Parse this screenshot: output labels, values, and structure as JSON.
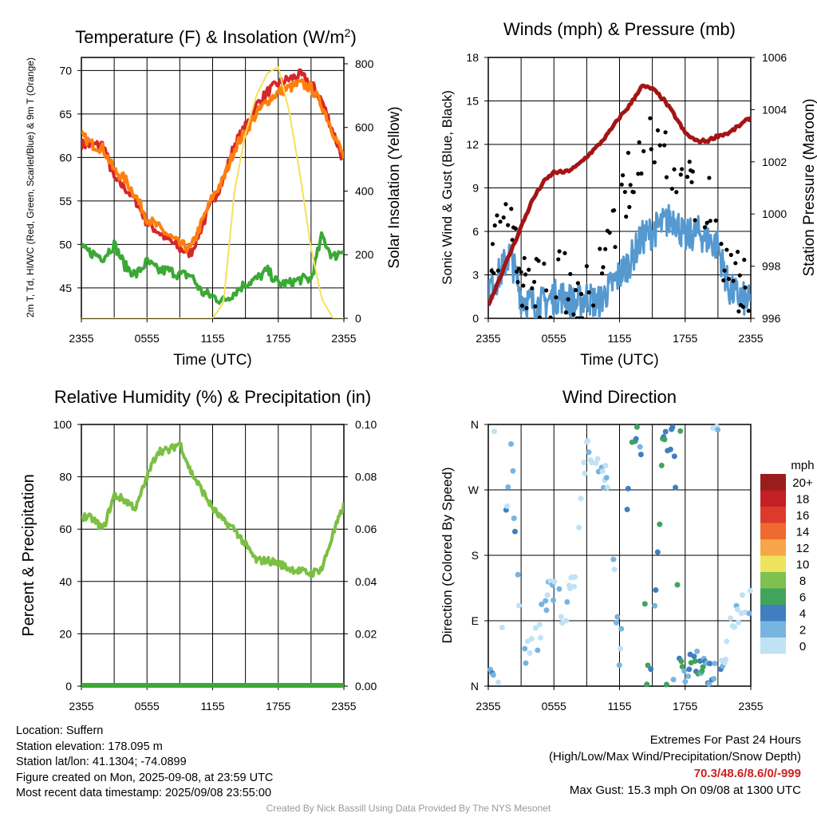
{
  "footer": {
    "location": "Location: Suffern",
    "elevation": "Station elevation: 178.095 m",
    "latlon": "Station lat/lon: 41.1304; -74.0899",
    "created": "Figure created on Mon, 2025-09-08, at 23:59 UTC",
    "latest": "Most recent data timestamp: 2025/09/08 23:55:00",
    "extremes_title": "Extremes For Past 24 Hours",
    "extremes_desc": "(High/Low/Max Wind/Precipitation/Snow Depth)",
    "extremes_values": "70.3/48.6/8.6/0/-999",
    "max_gust": "Max Gust: 15.3 mph On 09/08 at 1300 UTC",
    "credit": "Created By Nick Bassill Using Data Provided By The NYS Mesonet"
  },
  "chart_data": [
    {
      "type": "line",
      "title": "Temperature (F) & Insolation (W/m²)",
      "xlabel": "Time (UTC)",
      "ylabel": "2m T, Td, HI/WC (Red, Green, Scarlet/Blue) & 9m T (Orange)",
      "y2label": "Solar Insolation (Yellow)",
      "xticks": [
        "2355",
        "0555",
        "1155",
        "1755",
        "2355"
      ],
      "ylim": [
        41.5,
        71.5
      ],
      "yticks": [
        45,
        50,
        55,
        60,
        65,
        70
      ],
      "y2lim": [
        0,
        820
      ],
      "y2ticks": [
        0,
        200,
        400,
        600,
        800
      ],
      "x_hours_after_2355": [
        0,
        1,
        2,
        3,
        4,
        5,
        6,
        7,
        8,
        9,
        10,
        11,
        12,
        13,
        14,
        15,
        16,
        17,
        18,
        19,
        20,
        21,
        22,
        23,
        24
      ],
      "series": [
        {
          "color": "#d62728",
          "values": [
            61.5,
            61.4,
            61.5,
            57.5,
            56.5,
            55,
            52.5,
            51.5,
            50.5,
            49.5,
            49,
            52,
            55,
            57.5,
            61.5,
            63.5,
            66,
            67.5,
            68.5,
            69,
            69.5,
            68.5,
            66.5,
            63,
            59.5
          ]
        },
        {
          "color": "#ff7f0e",
          "values": [
            62.5,
            61.5,
            61,
            58.5,
            57.5,
            55.5,
            53,
            52,
            51,
            50,
            49.5,
            52.5,
            55.5,
            57.5,
            61,
            63,
            65,
            66.5,
            67.5,
            68,
            68.5,
            68,
            66,
            63,
            60
          ]
        },
        {
          "color": "#3aa935",
          "values": [
            49.5,
            49,
            48.5,
            50,
            47.5,
            46.5,
            48,
            47,
            47,
            46.5,
            46.5,
            44.5,
            44,
            43.5,
            44.5,
            45.5,
            46,
            47,
            45.5,
            45.5,
            46,
            46,
            51,
            48.5,
            49.5
          ]
        },
        {
          "color": "#f5e05a",
          "axis": "y2",
          "values": [
            0,
            0,
            0,
            0,
            0,
            0,
            0,
            0,
            0,
            0,
            0,
            0,
            0,
            50,
            400,
            580,
            700,
            770,
            790,
            650,
            450,
            220,
            60,
            0,
            0
          ]
        }
      ]
    },
    {
      "type": "line",
      "title": "Winds (mph) & Pressure (mb)",
      "xlabel": "Time (UTC)",
      "ylabel": "Sonic Wind & Gust (Blue, Black)",
      "y2label": "Station Pressure (Maroon)",
      "xticks": [
        "2355",
        "0555",
        "1155",
        "1755",
        "2355"
      ],
      "ylim": [
        0,
        18
      ],
      "yticks": [
        0,
        3,
        6,
        9,
        12,
        15,
        18
      ],
      "y2lim": [
        996,
        1006
      ],
      "y2ticks": [
        996,
        998,
        1000,
        1002,
        1004,
        1006
      ],
      "x_hours_after_2355": [
        0,
        1,
        2,
        3,
        4,
        5,
        6,
        7,
        8,
        9,
        10,
        11,
        12,
        13,
        14,
        15,
        16,
        17,
        18,
        19,
        20,
        21,
        22,
        23,
        24
      ],
      "series": [
        {
          "color": "#5599d0",
          "values": [
            2,
            3,
            4.5,
            1.5,
            1,
            1,
            1.5,
            1.5,
            1,
            1.5,
            1,
            2,
            3,
            4,
            5.5,
            6,
            6.5,
            7,
            5.5,
            6,
            5.5,
            5,
            2,
            1.5,
            1
          ]
        },
        {
          "color": "#000000",
          "values": [
            3,
            6,
            8,
            3,
            2,
            1.5,
            3,
            2,
            1.5,
            2,
            2,
            4,
            7,
            9.5,
            11.5,
            13,
            12,
            10,
            8.5,
            8.5,
            8,
            6.5,
            3,
            2,
            1
          ]
        },
        {
          "color": "#a31515",
          "axis": "y2",
          "values": [
            996.5,
            997.5,
            998.5,
            999.5,
            1000.5,
            1001.2,
            1001.6,
            1001.6,
            1001.8,
            1002.2,
            1002.6,
            1003.1,
            1003.7,
            1004.2,
            1004.9,
            1004.8,
            1004.4,
            1003.8,
            1003.1,
            1002.8,
            1002.8,
            1003,
            1003.1,
            1003.4,
            1003.7
          ]
        }
      ]
    },
    {
      "type": "line",
      "title": "Relative Humidity (%) & Precipitation (in)",
      "ylabel": "Percent & Precipitation",
      "xticks": [
        "2355",
        "0555",
        "1155",
        "1755",
        "2355"
      ],
      "ylim": [
        0,
        100
      ],
      "yticks": [
        0,
        20,
        40,
        60,
        80,
        100
      ],
      "y2lim": [
        0,
        0.1
      ],
      "y2ticks": [
        "0.00",
        "0.02",
        "0.04",
        "0.06",
        "0.08",
        "0.10"
      ],
      "x_hours_after_2355": [
        0,
        1,
        2,
        3,
        4,
        5,
        6,
        7,
        8,
        9,
        10,
        11,
        12,
        13,
        14,
        15,
        16,
        17,
        18,
        19,
        20,
        21,
        22,
        23,
        24
      ],
      "series": [
        {
          "color": "#7bc043",
          "values": [
            65,
            64,
            60,
            73,
            71,
            68,
            80,
            90,
            90,
            93,
            82,
            75,
            68,
            63,
            60,
            54,
            48,
            48,
            47,
            45,
            44,
            43,
            45,
            58,
            69
          ]
        },
        {
          "color": "#3aa935",
          "axis": "y2",
          "values": [
            0,
            0,
            0,
            0,
            0,
            0,
            0,
            0,
            0,
            0,
            0,
            0,
            0,
            0,
            0,
            0,
            0,
            0,
            0,
            0,
            0,
            0,
            0,
            0,
            0
          ]
        }
      ]
    },
    {
      "type": "scatter",
      "title": "Wind Direction",
      "ylabel": "Direction (Colored By Speed)",
      "xticks": [
        "2355",
        "0555",
        "1155",
        "1755",
        "2355"
      ],
      "yticks": [
        "N",
        "E",
        "S",
        "W",
        "N"
      ],
      "ylim": [
        0,
        360
      ],
      "legend_title": "mph",
      "legend_labels": [
        "20+",
        "18",
        "16",
        "14",
        "12",
        "10",
        "8",
        "6",
        "4",
        "2",
        "0"
      ],
      "legend_colors": [
        "#9b1c1c",
        "#c21f26",
        "#dc3b2c",
        "#ef6a2e",
        "#f6a548",
        "#ede45e",
        "#7fc051",
        "#41a45c",
        "#3f7fbf",
        "#78b4e0",
        "#bfe2f5"
      ],
      "x_hours_after_2355": [
        0,
        0.5,
        1,
        2,
        3,
        4,
        4.5,
        5,
        6,
        7,
        8,
        9,
        10,
        11,
        12,
        13,
        13.5,
        14,
        14.5,
        15,
        16,
        17,
        17.5,
        18,
        19,
        20,
        21,
        22,
        23,
        23.5
      ],
      "direction_deg": [
        15,
        10,
        5,
        360,
        40,
        70,
        60,
        110,
        140,
        90,
        160,
        330,
        300,
        290,
        20,
        335,
        350,
        340,
        15,
        25,
        340,
        350,
        10,
        25,
        30,
        20,
        15,
        70,
        100,
        110
      ],
      "speed_mph": [
        2,
        3,
        1,
        4,
        1,
        2,
        1,
        2,
        1,
        1,
        2,
        1,
        2,
        2,
        3,
        5,
        7,
        4,
        6,
        5,
        6,
        4,
        7,
        3,
        5,
        4,
        3,
        1,
        1,
        1
      ]
    }
  ]
}
